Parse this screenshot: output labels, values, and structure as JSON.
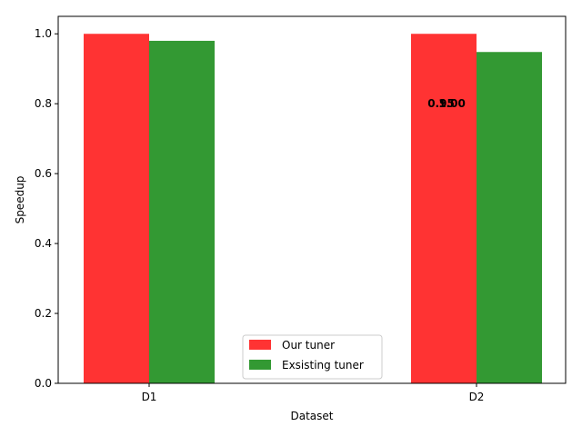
{
  "chart_data": {
    "type": "bar",
    "categories": [
      "D1",
      "D2"
    ],
    "series": [
      {
        "name": "Our tuner",
        "values": [
          1.0,
          1.0
        ],
        "color": "#ff3333"
      },
      {
        "name": "Exsisting tuner",
        "values": [
          0.98,
          0.948
        ],
        "color": "#339933"
      }
    ],
    "xlabel": "Dataset",
    "ylabel": "Speedup",
    "ylim": [
      0,
      1.05
    ],
    "yticks": [
      "0.0",
      "0.2",
      "0.4",
      "0.6",
      "0.8",
      "1.0"
    ],
    "legend_position": "lower-center",
    "annotations": [
      {
        "text": "0.95",
        "category": "D2",
        "y": 0.8
      },
      {
        "text": "1.00",
        "category": "D2",
        "y": 0.8
      }
    ]
  }
}
